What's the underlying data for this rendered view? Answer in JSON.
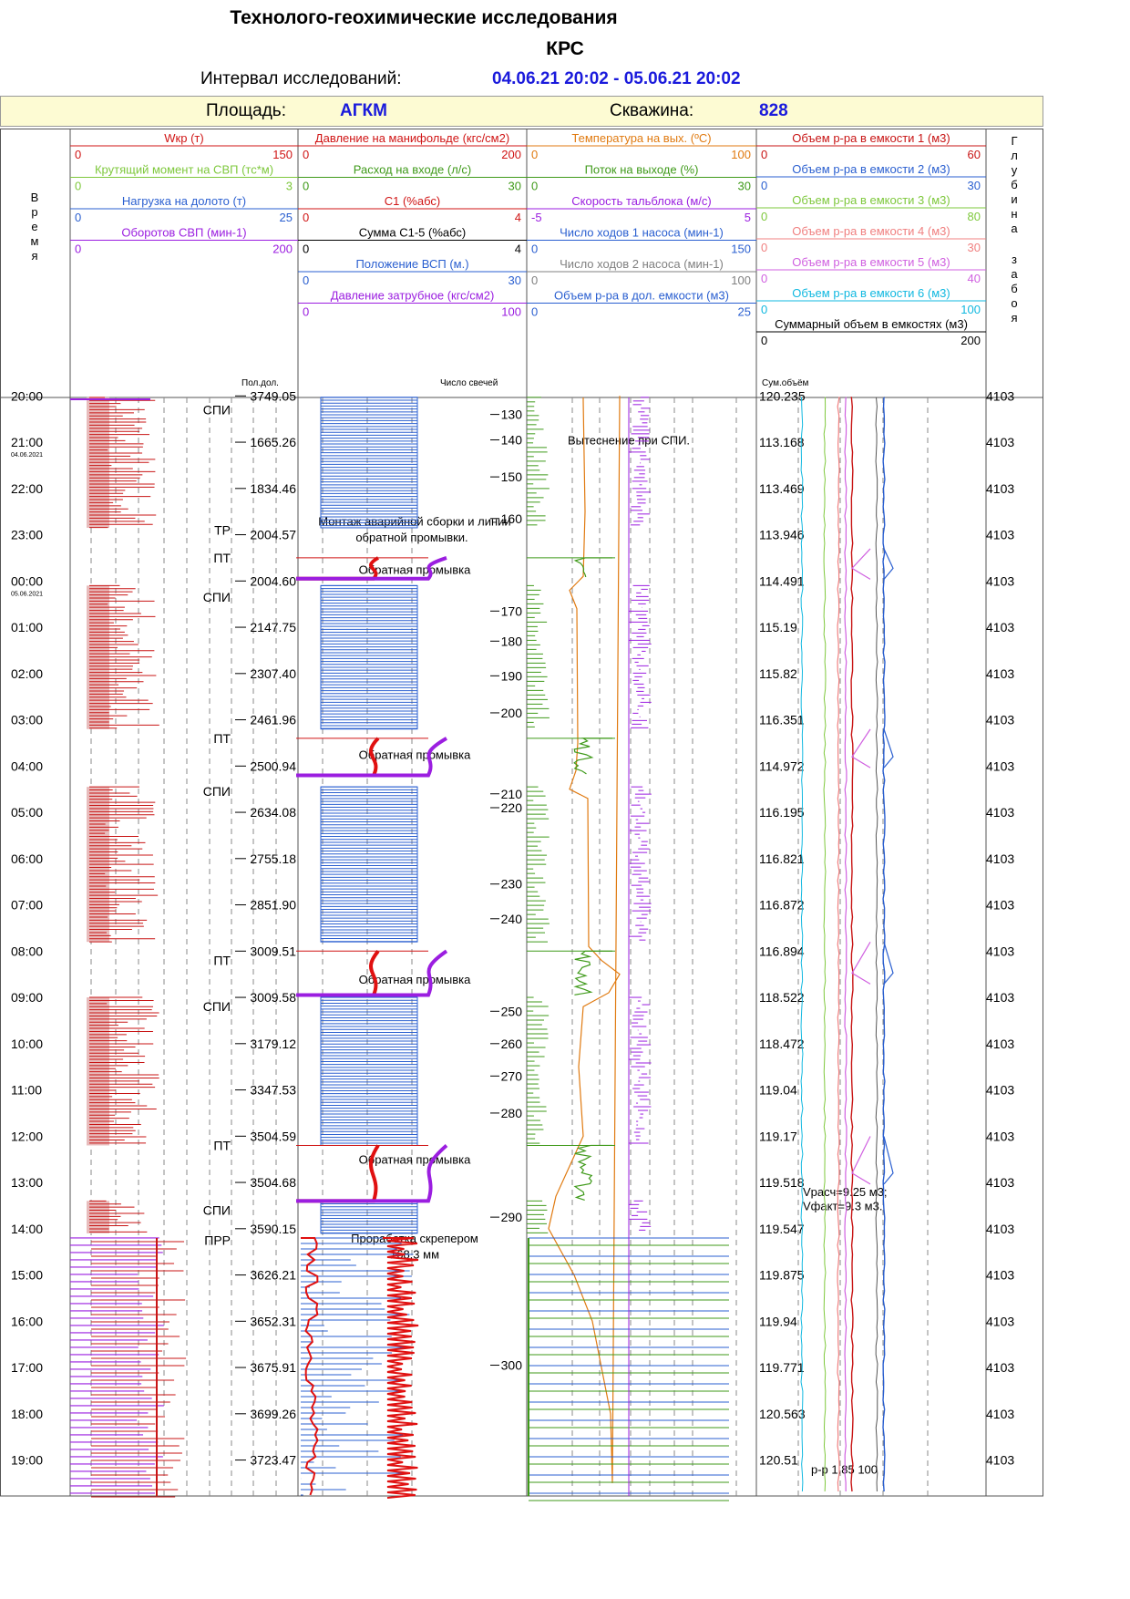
{
  "header": {
    "title": "Технолого-геохимические исследования",
    "subtitle": "КРС",
    "interval_label": "Интервал исследований:",
    "interval_value": "04.06.21 20:02 - 05.06.21 20:02",
    "area_label": "Площадь:",
    "area_value": "АГКМ",
    "well_label": "Скважина:",
    "well_value": "828"
  },
  "columns": {
    "time_label": "Время",
    "depth_label": "Глубина забоя",
    "col1_footer": "Пол.дол.",
    "col2_footer": "Число свечей",
    "col4_footer": "Сум.объём"
  },
  "tracks": [
    [
      {
        "name": "Wкр (т)",
        "min": "0",
        "max": "150",
        "color": "#d01515"
      },
      {
        "name": "Крутящий момент на СВП (тс*м)",
        "min": "0",
        "max": "3",
        "color": "#7ec83c"
      },
      {
        "name": "Нагрузка на долото (т)",
        "min": "0",
        "max": "25",
        "color": "#2a5fd0"
      },
      {
        "name": "Оборотов СВП (мин-1)",
        "min": "0",
        "max": "200",
        "color": "#9b1ee0"
      }
    ],
    [
      {
        "name": "Давление на манифольде (кгс/см2)",
        "min": "0",
        "max": "200",
        "color": "#d01515"
      },
      {
        "name": "Расход на входе (л/с)",
        "min": "0",
        "max": "30",
        "color": "#3f9a1a"
      },
      {
        "name": "С1 (%абс)",
        "min": "0",
        "max": "4",
        "color": "#d01515"
      },
      {
        "name": "Сумма С1-5 (%абс)",
        "min": "0",
        "max": "4",
        "color": "#000000"
      },
      {
        "name": "Положение ВСП (м.)",
        "min": "0",
        "max": "30",
        "color": "#2a5fd0"
      },
      {
        "name": "Давление затрубное (кгс/см2)",
        "min": "0",
        "max": "100",
        "color": "#9b1ee0"
      }
    ],
    [
      {
        "name": "Температура  на вых. (ºС)",
        "min": "0",
        "max": "100",
        "color": "#e07a10"
      },
      {
        "name": "Поток на выходе (%)",
        "min": "0",
        "max": "30",
        "color": "#3f9a1a"
      },
      {
        "name": "Скорость тальблока (м/с)",
        "min": "-5",
        "max": "5",
        "color": "#9b1ee0"
      },
      {
        "name": "Число ходов 1 насоса (мин-1)",
        "min": "0",
        "max": "150",
        "color": "#2a5fd0"
      },
      {
        "name": "Число ходов 2 насоса (мин-1)",
        "min": "0",
        "max": "100",
        "color": "#808080"
      },
      {
        "name": "Объем р-ра в дол. емкости (м3)",
        "min": "0",
        "max": "25",
        "color": "#2a5fd0"
      }
    ],
    [
      {
        "name": "Объем р-ра в емкости 1 (м3)",
        "min": "0",
        "max": "60",
        "color": "#c81414"
      },
      {
        "name": "Объем р-ра в емкости 2 (м3)",
        "min": "0",
        "max": "30",
        "color": "#2a5fd0"
      },
      {
        "name": "Объем р-ра в емкости 3 (м3)",
        "min": "0",
        "max": "80",
        "color": "#7ec83c"
      },
      {
        "name": "Объем р-ра в емкости 4 (м3)",
        "min": "0",
        "max": "30",
        "color": "#f08080"
      },
      {
        "name": "Объем р-ра в емкости 5 (м3)",
        "min": "0",
        "max": "40",
        "color": "#d060e0"
      },
      {
        "name": "Объем р-ра в емкости 6 (м3)",
        "min": "0",
        "max": "100",
        "color": "#10b8e0"
      },
      {
        "name": "Суммарный объем в емкостях (м3)",
        "min": "0",
        "max": "200",
        "color": "#000000"
      }
    ]
  ],
  "chart_data": {
    "type": "line",
    "title": "Технолого-геохимические исследования",
    "x_axis": "Время",
    "time_range": [
      "04.06.21 20:02",
      "05.06.21 20:02"
    ],
    "date_labels": {
      "21:00": "04.06.2021",
      "00:00": "05.06.2021"
    },
    "times": [
      "21:00",
      "22:00",
      "23:00",
      "00:00",
      "01:00",
      "02:00",
      "03:00",
      "04:00",
      "05:00",
      "06:00",
      "07:00",
      "08:00",
      "09:00",
      "10:00",
      "11:00",
      "12:00",
      "13:00",
      "14:00",
      "15:00",
      "16:00",
      "17:00",
      "18:00",
      "19:00",
      "20:00"
    ],
    "pipe_depth": [
      "1665.26",
      "1834.46",
      "2004.57",
      "2004.60",
      "2147.75",
      "2307.40",
      "2461.96",
      "2500.94",
      "2634.08",
      "2755.18",
      "2851.90",
      "3009.51",
      "3009.58",
      "3179.12",
      "3347.53",
      "3504.59",
      "3504.68",
      "3590.15",
      "3626.21",
      "3652.31",
      "3675.91",
      "3699.26",
      "3723.47",
      "3749.05"
    ],
    "total_volume": [
      "113.168",
      "113.469",
      "113.946",
      "114.491",
      "115.19",
      "115.82",
      "116.351",
      "114.972",
      "116.195",
      "116.821",
      "116.872",
      "116.894",
      "118.522",
      "118.472",
      "119.04",
      "119.17",
      "119.518",
      "119.547",
      "119.875",
      "119.94",
      "119.771",
      "120.563",
      "120.51",
      "120.235"
    ],
    "bottom_depth": [
      "4103",
      "4103",
      "4103",
      "4103",
      "4103",
      "4103",
      "4103",
      "4103",
      "4103",
      "4103",
      "4103",
      "4103",
      "4103",
      "4103",
      "4103",
      "4103",
      "4103",
      "4103",
      "4103",
      "4103",
      "4103",
      "4103",
      "4103",
      "4103"
    ],
    "stand_count": [
      {
        "time": 20.4,
        "value": "130"
      },
      {
        "time": 20.95,
        "value": "140"
      },
      {
        "time": 21.75,
        "value": "150"
      },
      {
        "time": 22.65,
        "value": "160"
      },
      {
        "time": 0.65,
        "value": "170"
      },
      {
        "time": 1.3,
        "value": "180"
      },
      {
        "time": 2.05,
        "value": "190"
      },
      {
        "time": 2.85,
        "value": "200"
      },
      {
        "time": 4.6,
        "value": "210"
      },
      {
        "time": 4.9,
        "value": "220"
      },
      {
        "time": 6.55,
        "value": "230"
      },
      {
        "time": 7.3,
        "value": "240"
      },
      {
        "time": 9.3,
        "value": "250"
      },
      {
        "time": 10.0,
        "value": "260"
      },
      {
        "time": 10.7,
        "value": "270"
      },
      {
        "time": 11.5,
        "value": "280"
      },
      {
        "time": 13.75,
        "value": "290"
      },
      {
        "time": 16.95,
        "value": "300"
      }
    ],
    "operations": [
      {
        "time": 20.3,
        "code": "СПИ"
      },
      {
        "time": 22.9,
        "code": "ТР"
      },
      {
        "time": 23.5,
        "code": "ПТ"
      },
      {
        "time": 0.35,
        "code": "СПИ"
      },
      {
        "time": 3.4,
        "code": "ПТ"
      },
      {
        "time": 4.55,
        "code": "СПИ"
      },
      {
        "time": 8.2,
        "code": "ПТ"
      },
      {
        "time": 9.2,
        "code": "СПИ"
      },
      {
        "time": 12.2,
        "code": "ПТ"
      },
      {
        "time": 13.6,
        "code": "СПИ"
      },
      {
        "time": 14.25,
        "code": "ПРР"
      }
    ],
    "annotations": [
      {
        "time": 20.95,
        "text": "Вытеснение при СПИ."
      },
      {
        "time": 22.7,
        "text": "Монтаж аварийной сборки и линии"
      },
      {
        "time": 23.05,
        "text": "обратной промывки."
      },
      {
        "time": 23.75,
        "text": "Обратная промывка"
      },
      {
        "time": 3.75,
        "text": "Обратная промывка"
      },
      {
        "time": 8.6,
        "text": "Обратная промывка"
      },
      {
        "time": 12.5,
        "text": "Обратная промывка"
      },
      {
        "time": 14.2,
        "text": "Проработка скрепером"
      },
      {
        "time": 14.55,
        "text": "168.3 мм"
      },
      {
        "time": 13.2,
        "text": "Vрасч=9.25 м3;"
      },
      {
        "time": 13.5,
        "text": "Vфакт=9.3 м3."
      },
      {
        "time": 19.2,
        "text": "р-р  1.85  100"
      }
    ]
  }
}
